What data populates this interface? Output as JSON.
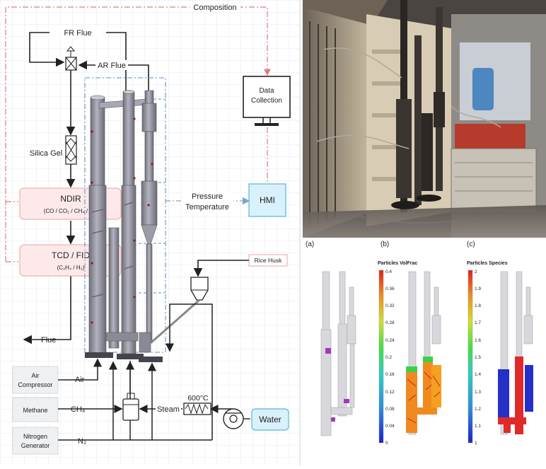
{
  "schematic": {
    "composition_label": "Composition",
    "fr_flue_label": "FR Flue",
    "ar_flue_label": "AR Flue",
    "silica_gel_label": "Silica Gel",
    "ndir_title": "NDIR",
    "ndir_subtitle": "(CO / CO₂ / CH₄ / O₂)",
    "tcd_title": "TCD / FID",
    "tcd_subtitle": "(C₂H₄ / H₂)",
    "flue_out_label": "Flue",
    "data_collection_line1": "Data",
    "data_collection_line2": "Collection",
    "pressure_label": "Pressure",
    "temperature_label": "Temperature",
    "hmi_label": "HMI",
    "rice_husk_label": "Rice Husk",
    "air_compressor_line1": "Air",
    "air_compressor_line2": "Compressor",
    "air_label": "Air",
    "methane_label": "Methane",
    "ch4_label": "CH₄",
    "steam_label": "Steam",
    "heater_temp_label": "600°C",
    "water_label": "Water",
    "nitrogen_line1": "Nitrogen",
    "nitrogen_line2": "Generator",
    "n2_label": "N₂",
    "colors": {
      "grid_line": "#dfe3ea",
      "red_dash": "#e07a7a",
      "blue_dash": "#7ea3cf",
      "pink_box_fill": "#fde9e9",
      "pink_box_stroke": "#e8a3a3",
      "hmi_fill": "#d9f1fb",
      "hmi_stroke": "#5bb5dd",
      "water_fill": "#d9f1fb",
      "gray_box_fill": "#eef0f2",
      "reactor_fill": "#9a9aa6",
      "reactor_dark": "#5e5e6a"
    }
  },
  "photo": {
    "description_icon": "experimental-rig-photo"
  },
  "cfd": {
    "panel_a_label": "(a)",
    "panel_b_label": "(b)",
    "panel_c_label": "(c)",
    "b_title": "Particles VolFrac",
    "c_title": "Particles Species",
    "b_ticks": [
      "0.4",
      "0.36",
      "0.32",
      "0.28",
      "0.24",
      "0.2",
      "0.16",
      "0.12",
      "0.08",
      "0.04",
      "0"
    ],
    "c_ticks": [
      "2",
      "1.9",
      "1.8",
      "1.7",
      "1.6",
      "1.5",
      "1.4",
      "1.3",
      "1.2",
      "1.1",
      "1"
    ]
  }
}
